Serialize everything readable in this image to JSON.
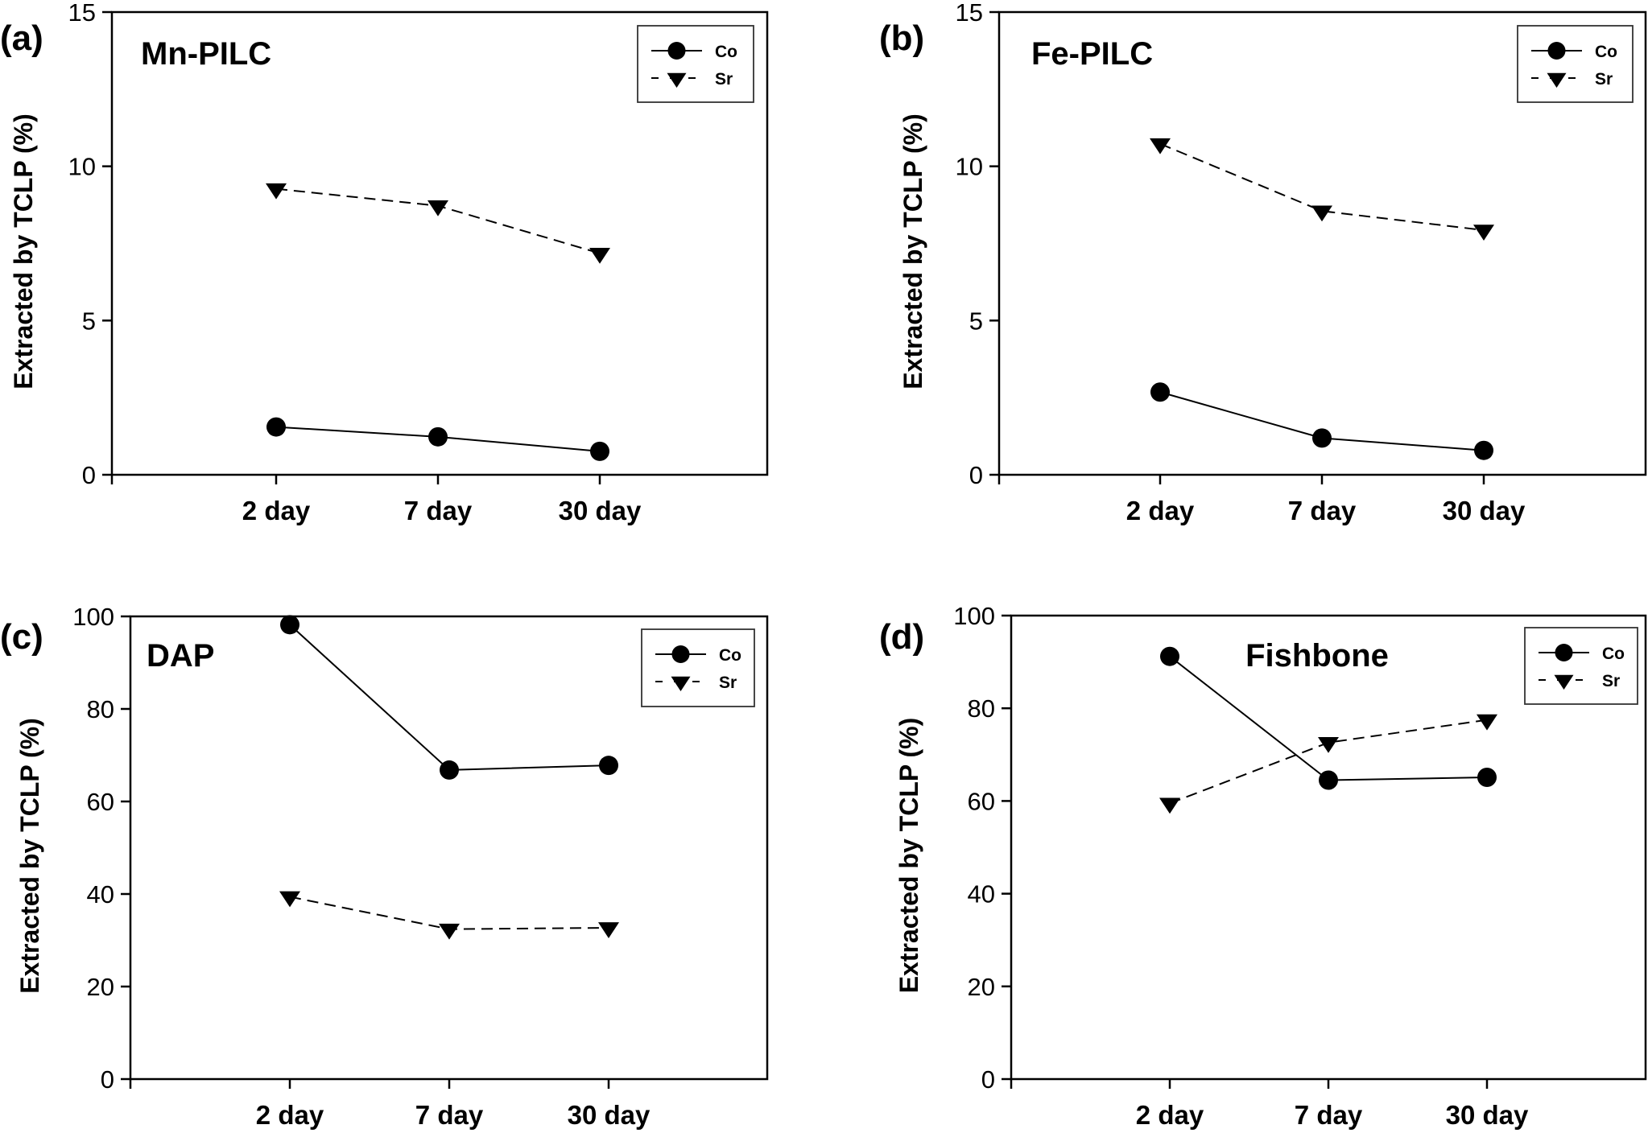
{
  "chart_data": [
    {
      "type": "line",
      "panel_label": "(a)",
      "title": "Mn-PILC",
      "title_position": "top-left",
      "xlabel": "",
      "ylabel": "Extracted by TCLP (%)",
      "categories": [
        "2 day",
        "7 day",
        "30 day"
      ],
      "ylim": [
        0,
        15
      ],
      "yticks": [
        0,
        5,
        10,
        15
      ],
      "grid": false,
      "legend": "top-right",
      "series": [
        {
          "name": "Co",
          "marker": "circle",
          "line": "solid",
          "values": [
            1.55,
            1.23,
            0.76
          ]
        },
        {
          "name": "Sr",
          "marker": "triangle-down",
          "line": "dashed",
          "values": [
            9.27,
            8.72,
            7.18
          ]
        }
      ]
    },
    {
      "type": "line",
      "panel_label": "(b)",
      "title": "Fe-PILC",
      "title_position": "top-left",
      "xlabel": "",
      "ylabel": "Extracted by TCLP (%)",
      "categories": [
        "2 day",
        "7 day",
        "30 day"
      ],
      "ylim": [
        0,
        15
      ],
      "yticks": [
        0,
        5,
        10,
        15
      ],
      "grid": false,
      "legend": "top-right",
      "series": [
        {
          "name": "Co",
          "marker": "circle",
          "line": "solid",
          "values": [
            2.68,
            1.19,
            0.79
          ]
        },
        {
          "name": "Sr",
          "marker": "triangle-down",
          "line": "dashed",
          "values": [
            10.73,
            8.55,
            7.93
          ]
        }
      ]
    },
    {
      "type": "line",
      "panel_label": "(c)",
      "title": "DAP",
      "title_position": "top-left",
      "xlabel": "",
      "ylabel": "Extracted by TCLP (%)",
      "categories": [
        "2 day",
        "7 day",
        "30 day"
      ],
      "ylim": [
        0,
        100
      ],
      "yticks": [
        0,
        20,
        40,
        60,
        80,
        100
      ],
      "grid": false,
      "legend": "top-right",
      "series": [
        {
          "name": "Co",
          "marker": "circle",
          "line": "solid",
          "values": [
            98.2,
            66.8,
            67.8
          ]
        },
        {
          "name": "Sr",
          "marker": "triangle-down",
          "line": "dashed",
          "values": [
            39.4,
            32.4,
            32.7
          ]
        }
      ]
    },
    {
      "type": "line",
      "panel_label": "(d)",
      "title": "Fishbone",
      "title_position": "top-center",
      "xlabel": "",
      "ylabel": "Extracted by TCLP (%)",
      "categories": [
        "2 day",
        "7 day",
        "30 day"
      ],
      "ylim": [
        0,
        100
      ],
      "yticks": [
        0,
        20,
        40,
        60,
        80,
        100
      ],
      "grid": false,
      "legend": "top-right",
      "series": [
        {
          "name": "Co",
          "marker": "circle",
          "line": "solid",
          "values": [
            91.2,
            64.5,
            65.1
          ]
        },
        {
          "name": "Sr",
          "marker": "triangle-down",
          "line": "dashed",
          "values": [
            59.5,
            72.6,
            77.5
          ]
        }
      ]
    }
  ],
  "colors": {
    "line": "#000000",
    "marker": "#000000",
    "background": "#ffffff"
  }
}
